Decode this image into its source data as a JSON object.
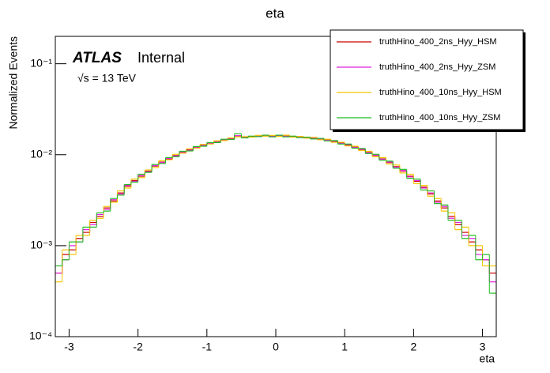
{
  "chart_data": {
    "type": "histogram",
    "title": "eta",
    "x_label": "eta",
    "y_label": "Normalized Events",
    "experiment": "ATLAS",
    "status": "Internal",
    "energy": "√s = 13 TeV",
    "log_y": true,
    "legend": "top-right",
    "xlim": [
      -3.2,
      3.2
    ],
    "ylim": [
      0.0001,
      0.2
    ],
    "xticks": [
      -3,
      -2,
      -1,
      0,
      1,
      2,
      3
    ],
    "yticks": [
      {
        "value": 0.0001,
        "label": "10⁻⁴"
      },
      {
        "value": 0.001,
        "label": "10⁻³"
      },
      {
        "value": 0.01,
        "label": "10⁻²"
      },
      {
        "value": 0.1,
        "label": "10⁻¹"
      }
    ],
    "bins": [
      -3.2,
      -3.1,
      -3.0,
      -2.9,
      -2.8,
      -2.7,
      -2.6,
      -2.5,
      -2.4,
      -2.3,
      -2.2,
      -2.1,
      -2.0,
      -1.9,
      -1.8,
      -1.7,
      -1.6,
      -1.5,
      -1.4,
      -1.3,
      -1.2,
      -1.1,
      -1.0,
      -0.9,
      -0.8,
      -0.7,
      -0.6,
      -0.5,
      -0.4,
      -0.3,
      -0.2,
      -0.1,
      0,
      0.1,
      0.2,
      0.3,
      0.4,
      0.5,
      0.6,
      0.7,
      0.8,
      0.9,
      1.0,
      1.1,
      1.2,
      1.3,
      1.4,
      1.5,
      1.6,
      1.7,
      1.8,
      1.9,
      2.0,
      2.1,
      2.2,
      2.3,
      2.4,
      2.5,
      2.6,
      2.7,
      2.8,
      2.9,
      3.0,
      3.1,
      3.2
    ],
    "series": [
      {
        "name": "truthHino_400_2ns_Hyy_HSM",
        "color": "#cc0000",
        "values": [
          0.0005,
          0.0008,
          0.0009,
          0.0012,
          0.0014,
          0.0018,
          0.0021,
          0.0026,
          0.0031,
          0.0038,
          0.0045,
          0.0052,
          0.0058,
          0.0066,
          0.0075,
          0.0083,
          0.009,
          0.0098,
          0.0106,
          0.0113,
          0.012,
          0.0127,
          0.0133,
          0.0139,
          0.0145,
          0.015,
          0.0158,
          0.0155,
          0.0158,
          0.016,
          0.0162,
          0.016,
          0.0161,
          0.016,
          0.0158,
          0.0156,
          0.0154,
          0.0152,
          0.0148,
          0.0145,
          0.014,
          0.0134,
          0.0128,
          0.0121,
          0.0114,
          0.0106,
          0.0098,
          0.009,
          0.0082,
          0.0074,
          0.0066,
          0.0058,
          0.0051,
          0.0044,
          0.0037,
          0.0031,
          0.0026,
          0.0021,
          0.0017,
          0.0014,
          0.0011,
          0.0009,
          0.0007,
          0.0005
        ]
      },
      {
        "name": "truthHino_400_2ns_Hyy_ZSM",
        "color": "#e020e0",
        "values": [
          0.0005,
          0.0007,
          0.001,
          0.0011,
          0.0015,
          0.0017,
          0.0022,
          0.0025,
          0.0032,
          0.0037,
          0.0046,
          0.0051,
          0.0059,
          0.0065,
          0.0076,
          0.0082,
          0.0091,
          0.0097,
          0.0107,
          0.0112,
          0.0121,
          0.0126,
          0.0134,
          0.0138,
          0.0146,
          0.0149,
          0.0162,
          0.0156,
          0.0157,
          0.0161,
          0.0161,
          0.0159,
          0.0162,
          0.0159,
          0.0157,
          0.0157,
          0.0153,
          0.0151,
          0.0149,
          0.0144,
          0.0141,
          0.0133,
          0.0129,
          0.012,
          0.0115,
          0.0105,
          0.0099,
          0.0089,
          0.0083,
          0.0073,
          0.0067,
          0.0057,
          0.0052,
          0.0043,
          0.0038,
          0.003,
          0.0027,
          0.002,
          0.0018,
          0.0013,
          0.0012,
          0.0008,
          0.0007,
          0.0004
        ]
      },
      {
        "name": "truthHino_400_10ns_Hyy_HSM",
        "color": "#f5c400",
        "values": [
          0.0004,
          0.0009,
          0.0008,
          0.0013,
          0.0013,
          0.0019,
          0.002,
          0.0027,
          0.003,
          0.004,
          0.0043,
          0.0054,
          0.0056,
          0.0068,
          0.0072,
          0.0086,
          0.0088,
          0.0101,
          0.0104,
          0.0116,
          0.0118,
          0.013,
          0.0131,
          0.0142,
          0.0143,
          0.0153,
          0.0157,
          0.0158,
          0.0156,
          0.0163,
          0.016,
          0.0163,
          0.0159,
          0.0164,
          0.0156,
          0.0159,
          0.0152,
          0.0155,
          0.0146,
          0.0148,
          0.0137,
          0.0137,
          0.0125,
          0.0124,
          0.0111,
          0.0109,
          0.0095,
          0.0093,
          0.0079,
          0.0077,
          0.0063,
          0.0061,
          0.0048,
          0.0046,
          0.0035,
          0.0033,
          0.0024,
          0.0023,
          0.0015,
          0.0016,
          0.001,
          0.001,
          0.0006,
          0.0006
        ]
      },
      {
        "name": "truthHino_400_10ns_Hyy_ZSM",
        "color": "#22bb22",
        "values": [
          0.0006,
          0.0007,
          0.0011,
          0.0011,
          0.0016,
          0.0016,
          0.0023,
          0.0024,
          0.0033,
          0.0036,
          0.0047,
          0.005,
          0.0061,
          0.0064,
          0.0078,
          0.008,
          0.0093,
          0.0095,
          0.0109,
          0.011,
          0.0123,
          0.0124,
          0.0136,
          0.0136,
          0.0148,
          0.0147,
          0.017,
          0.0153,
          0.016,
          0.0158,
          0.0164,
          0.0157,
          0.0164,
          0.0157,
          0.016,
          0.0154,
          0.0156,
          0.0149,
          0.0151,
          0.0142,
          0.0143,
          0.0131,
          0.0131,
          0.0118,
          0.0117,
          0.0103,
          0.0101,
          0.0087,
          0.0085,
          0.0071,
          0.0069,
          0.0055,
          0.0054,
          0.0041,
          0.004,
          0.0029,
          0.0028,
          0.0019,
          0.0019,
          0.0012,
          0.0013,
          0.0007,
          0.0008,
          0.0003
        ]
      }
    ]
  }
}
